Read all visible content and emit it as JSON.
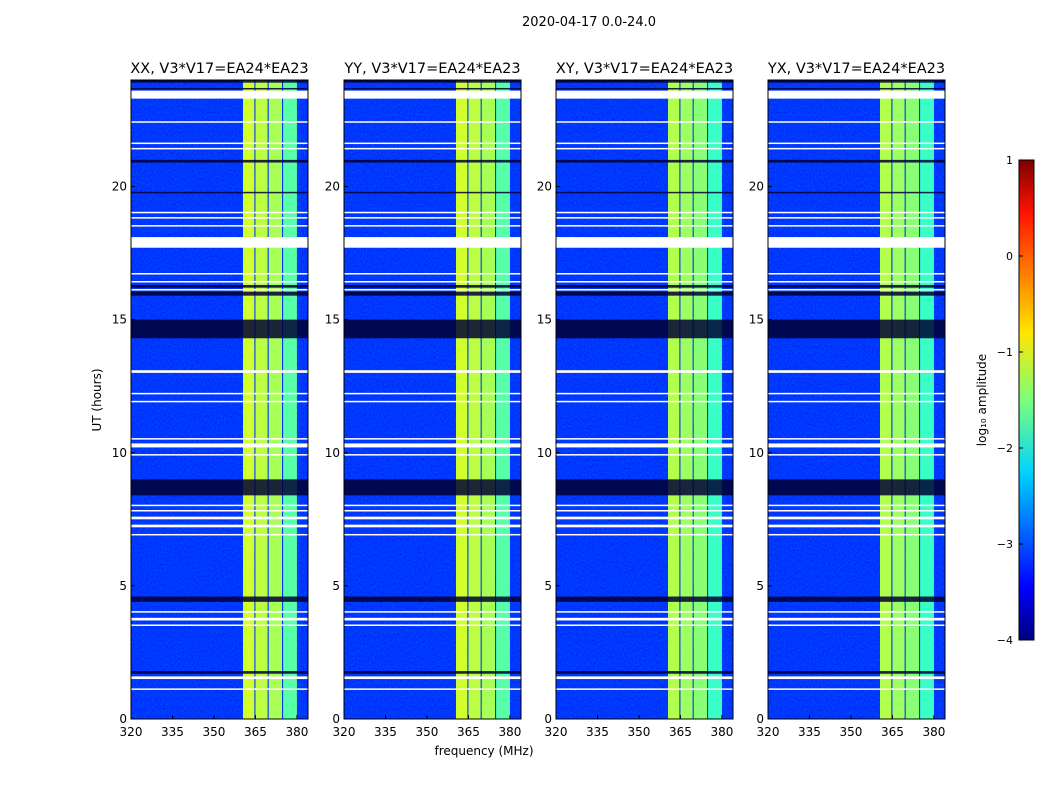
{
  "chart_data": {
    "type": "heatmap",
    "title": "2020-04-17 0.0-24.0",
    "xlabel": "frequency (MHz)",
    "ylabel": "UT (hours)",
    "xlim": [
      320,
      384
    ],
    "ylim": [
      0,
      24
    ],
    "xticks": [
      320,
      335,
      350,
      365,
      380
    ],
    "yticks": [
      0,
      5,
      10,
      15,
      20
    ],
    "panels": [
      {
        "title": "XX, V3*V17=EA24*EA23"
      },
      {
        "title": "YY, V3*V17=EA24*EA23"
      },
      {
        "title": "XY, V3*V17=EA24*EA23"
      },
      {
        "title": "YX, V3*V17=EA24*EA23"
      }
    ],
    "background_log_amplitude": -3.2,
    "bright_band_columns": [
      {
        "from": 360.5,
        "to": 364.6,
        "value": -1.1
      },
      {
        "from": 365.0,
        "to": 369.4,
        "value": -1.2
      },
      {
        "from": 369.8,
        "to": 374.6,
        "value": -1.3
      },
      {
        "from": 375.0,
        "to": 380.0,
        "value": -1.7
      }
    ],
    "flagged_hours": [
      [
        23.3,
        23.6
      ],
      [
        22.4,
        22.45
      ],
      [
        21.6,
        21.65
      ],
      [
        21.4,
        21.45
      ],
      [
        19.0,
        19.05
      ],
      [
        18.8,
        18.85
      ],
      [
        18.5,
        18.55
      ],
      [
        17.7,
        18.1
      ],
      [
        16.7,
        16.75
      ],
      [
        16.4,
        16.45
      ],
      [
        16.1,
        16.15
      ],
      [
        13.0,
        13.1
      ],
      [
        12.2,
        12.25
      ],
      [
        11.9,
        11.95
      ],
      [
        10.5,
        10.55
      ],
      [
        10.2,
        10.35
      ],
      [
        9.9,
        9.95
      ],
      [
        8.0,
        8.05
      ],
      [
        7.8,
        7.85
      ],
      [
        7.5,
        7.6
      ],
      [
        7.2,
        7.3
      ],
      [
        6.9,
        6.95
      ],
      [
        4.0,
        4.05
      ],
      [
        3.7,
        3.8
      ],
      [
        3.5,
        3.55
      ],
      [
        1.5,
        1.6
      ],
      [
        1.1,
        1.15
      ]
    ],
    "low_hours": [
      [
        24.0,
        23.9
      ],
      [
        23.7,
        23.65
      ],
      [
        21.0,
        20.9
      ],
      [
        19.8,
        19.75
      ],
      [
        16.3,
        16.2
      ],
      [
        16.05,
        15.9
      ],
      [
        15.0,
        14.3
      ],
      [
        9.0,
        8.4
      ],
      [
        4.6,
        4.4
      ],
      [
        1.8,
        1.7
      ]
    ],
    "colorbar": {
      "label": "log₁₀ amplitude",
      "ticks": [
        "1",
        "0",
        "−1",
        "−2",
        "−3",
        "−4"
      ],
      "range": [
        -4,
        1
      ],
      "colormap": "jet"
    }
  }
}
